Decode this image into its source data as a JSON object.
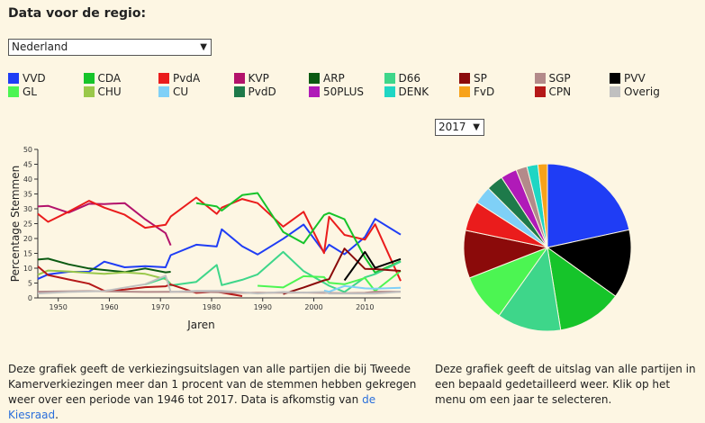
{
  "page": {
    "title": "Data voor de regio:",
    "region_select": "Nederland",
    "year_select": "2017",
    "arrow": "▼"
  },
  "legend": [
    {
      "name": "VVD",
      "color": "#1f3df5"
    },
    {
      "name": "CDA",
      "color": "#16c42a"
    },
    {
      "name": "PvdA",
      "color": "#ea1c1c"
    },
    {
      "name": "KVP",
      "color": "#b3126b"
    },
    {
      "name": "ARP",
      "color": "#0b5a12"
    },
    {
      "name": "D66",
      "color": "#3ed68a"
    },
    {
      "name": "SP",
      "color": "#8b0a0a"
    },
    {
      "name": "SGP",
      "color": "#b38a8a"
    },
    {
      "name": "PVV",
      "color": "#000000"
    },
    {
      "name": "GL",
      "color": "#4cf552"
    },
    {
      "name": "CHU",
      "color": "#9ac84a"
    },
    {
      "name": "CU",
      "color": "#7fd0f7"
    },
    {
      "name": "PvdD",
      "color": "#1e7a4a"
    },
    {
      "name": "50PLUS",
      "color": "#b01ab8"
    },
    {
      "name": "DENK",
      "color": "#1fd6c4"
    },
    {
      "name": "FvD",
      "color": "#f7a21a"
    },
    {
      "name": "CPN",
      "color": "#b51818"
    },
    {
      "name": "Overig",
      "color": "#c0c0c0"
    }
  ],
  "descriptions": {
    "line_text": "Deze grafiek geeft de verkiezingsuitslagen van alle partijen die bij Tweede Kamerverkiezingen meer dan 1 procent van de stemmen hebben gekregen weer over een periode van 1946 tot 2017. Data is afkomstig van",
    "line_link": "de Kiesraad",
    "line_end": ".",
    "pie_text": "Deze grafiek geeft de uitslag van alle partijen in een bepaald gedetailleerd weer. Klik op het menu om een jaar te selecteren."
  },
  "chart_data": [
    {
      "type": "line",
      "xlabel": "Jaren",
      "ylabel": "Percentage Stemmen",
      "xlim": [
        1946,
        2017
      ],
      "ylim": [
        0,
        50
      ],
      "xticks": [
        1950,
        1960,
        1970,
        1980,
        1990,
        2000,
        2010
      ],
      "yticks": [
        0,
        5,
        10,
        15,
        20,
        25,
        30,
        35,
        40,
        45,
        50
      ],
      "series": [
        {
          "name": "VVD",
          "color": "#1f3df5",
          "x": [
            1946,
            1948,
            1952,
            1956,
            1959,
            1963,
            1967,
            1971,
            1972,
            1977,
            1981,
            1982,
            1986,
            1989,
            1994,
            1998,
            2002,
            2003,
            2006,
            2010,
            2012,
            2017
          ],
          "y": [
            6.4,
            7.9,
            8.8,
            8.8,
            12.2,
            10.3,
            10.7,
            10.3,
            14.4,
            17.9,
            17.3,
            23.1,
            17.4,
            14.6,
            19.9,
            24.7,
            15.4,
            17.9,
            14.7,
            20.5,
            26.6,
            21.3
          ]
        },
        {
          "name": "KVP",
          "color": "#b3126b",
          "x": [
            1946,
            1948,
            1952,
            1956,
            1959,
            1963,
            1967,
            1971,
            1972
          ],
          "y": [
            30.8,
            31.0,
            28.7,
            31.7,
            31.6,
            31.9,
            26.5,
            21.8,
            17.7
          ]
        },
        {
          "name": "PvdA",
          "color": "#ea1c1c",
          "x": [
            1946,
            1948,
            1952,
            1956,
            1959,
            1963,
            1967,
            1971,
            1972,
            1977,
            1981,
            1982,
            1986,
            1989,
            1994,
            1998,
            2002,
            2003,
            2006,
            2010,
            2012,
            2017
          ],
          "y": [
            28.3,
            25.6,
            29.0,
            32.7,
            30.4,
            28.0,
            23.6,
            24.6,
            27.4,
            33.8,
            28.3,
            30.4,
            33.3,
            31.9,
            24.0,
            29.0,
            15.1,
            27.3,
            21.2,
            19.6,
            24.8,
            5.7
          ]
        },
        {
          "name": "CDA",
          "color": "#16c42a",
          "x": [
            1977,
            1981,
            1982,
            1986,
            1989,
            1994,
            1998,
            2002,
            2003,
            2006,
            2010,
            2012,
            2017
          ],
          "y": [
            31.9,
            30.8,
            29.4,
            34.6,
            35.3,
            22.2,
            18.4,
            27.9,
            28.6,
            26.5,
            13.6,
            8.5,
            12.4
          ]
        },
        {
          "name": "ARP",
          "color": "#0b5a12",
          "x": [
            1946,
            1948,
            1952,
            1956,
            1959,
            1963,
            1967,
            1971,
            1972
          ],
          "y": [
            12.9,
            13.2,
            11.3,
            9.9,
            9.4,
            8.7,
            9.9,
            8.6,
            8.8
          ]
        },
        {
          "name": "CHU",
          "color": "#9ac84a",
          "x": [
            1946,
            1948,
            1952,
            1956,
            1959,
            1963,
            1967,
            1971,
            1972
          ],
          "y": [
            7.8,
            9.2,
            8.9,
            8.4,
            8.1,
            8.6,
            8.1,
            6.3,
            4.8
          ]
        },
        {
          "name": "D66",
          "color": "#3ed68a",
          "x": [
            1967,
            1971,
            1972,
            1977,
            1981,
            1982,
            1986,
            1989,
            1994,
            1998,
            2002,
            2003,
            2006,
            2010,
            2012,
            2017
          ],
          "y": [
            4.5,
            6.8,
            4.2,
            5.4,
            11.1,
            4.3,
            6.1,
            7.9,
            15.5,
            9.0,
            5.1,
            4.1,
            2.0,
            6.9,
            8.0,
            12.2
          ]
        },
        {
          "name": "GL",
          "color": "#4cf552",
          "x": [
            1989,
            1994,
            1998,
            2002,
            2003,
            2006,
            2010,
            2012,
            2017
          ],
          "y": [
            4.1,
            3.5,
            7.3,
            7.0,
            5.1,
            4.6,
            6.7,
            2.3,
            9.1
          ]
        },
        {
          "name": "SP",
          "color": "#8b0a0a",
          "x": [
            1994,
            1998,
            2002,
            2003,
            2006,
            2010,
            2012,
            2017
          ],
          "y": [
            1.3,
            3.5,
            5.9,
            6.3,
            16.6,
            9.8,
            9.7,
            9.1
          ]
        },
        {
          "name": "PVV",
          "color": "#000000",
          "x": [
            2006,
            2010,
            2012,
            2017
          ],
          "y": [
            5.9,
            15.5,
            10.1,
            13.1
          ]
        },
        {
          "name": "CPN",
          "color": "#b51818",
          "x": [
            1946,
            1948,
            1952,
            1956,
            1959,
            1963,
            1967,
            1971,
            1972,
            1977,
            1981,
            1982,
            1986
          ],
          "y": [
            10.6,
            7.7,
            6.2,
            4.8,
            2.4,
            2.8,
            3.6,
            3.9,
            4.5,
            1.7,
            2.1,
            1.8,
            0.6
          ]
        },
        {
          "name": "SGP",
          "color": "#b38a8a",
          "x": [
            1946,
            1956,
            1967,
            1977,
            1986,
            1998,
            2002,
            2006,
            2010,
            2012,
            2017
          ],
          "y": [
            2.1,
            2.3,
            2.0,
            2.1,
            1.7,
            1.8,
            1.7,
            1.6,
            1.7,
            2.1,
            2.1
          ]
        },
        {
          "name": "CU",
          "color": "#7fd0f7",
          "x": [
            2002,
            2003,
            2006,
            2010,
            2012,
            2017
          ],
          "y": [
            2.5,
            2.1,
            4.0,
            3.2,
            3.1,
            3.4
          ]
        },
        {
          "name": "Overig",
          "color": "#c0c0c0",
          "x": [
            1946,
            1952,
            1959,
            1967,
            1971,
            1972,
            1977,
            1982,
            1989,
            1994,
            1998,
            2002,
            2003,
            2006,
            2010,
            2012,
            2017
          ],
          "y": [
            1.5,
            2.0,
            2.3,
            4.6,
            7.5,
            2.0,
            2.4,
            2.4,
            1.5,
            2.0,
            1.8,
            2.0,
            1.5,
            1.5,
            1.5,
            1.5,
            2.1
          ]
        }
      ]
    },
    {
      "type": "pie",
      "title": "2017",
      "slices": [
        {
          "name": "VVD",
          "value": 21.3,
          "color": "#1f3df5"
        },
        {
          "name": "PVV",
          "value": 13.1,
          "color": "#000000"
        },
        {
          "name": "CDA",
          "value": 12.4,
          "color": "#16c42a"
        },
        {
          "name": "D66",
          "value": 12.2,
          "color": "#3ed68a"
        },
        {
          "name": "GL",
          "value": 9.1,
          "color": "#4cf552"
        },
        {
          "name": "SP",
          "value": 9.1,
          "color": "#8b0a0a"
        },
        {
          "name": "PvdA",
          "value": 5.7,
          "color": "#ea1c1c"
        },
        {
          "name": "CU",
          "value": 3.4,
          "color": "#7fd0f7"
        },
        {
          "name": "PvdD",
          "value": 3.2,
          "color": "#1e7a4a"
        },
        {
          "name": "50PLUS",
          "value": 3.1,
          "color": "#b01ab8"
        },
        {
          "name": "SGP",
          "value": 2.1,
          "color": "#b38a8a"
        },
        {
          "name": "DENK",
          "value": 2.1,
          "color": "#1fd6c4"
        },
        {
          "name": "FvD",
          "value": 1.8,
          "color": "#f7a21a"
        }
      ]
    }
  ]
}
